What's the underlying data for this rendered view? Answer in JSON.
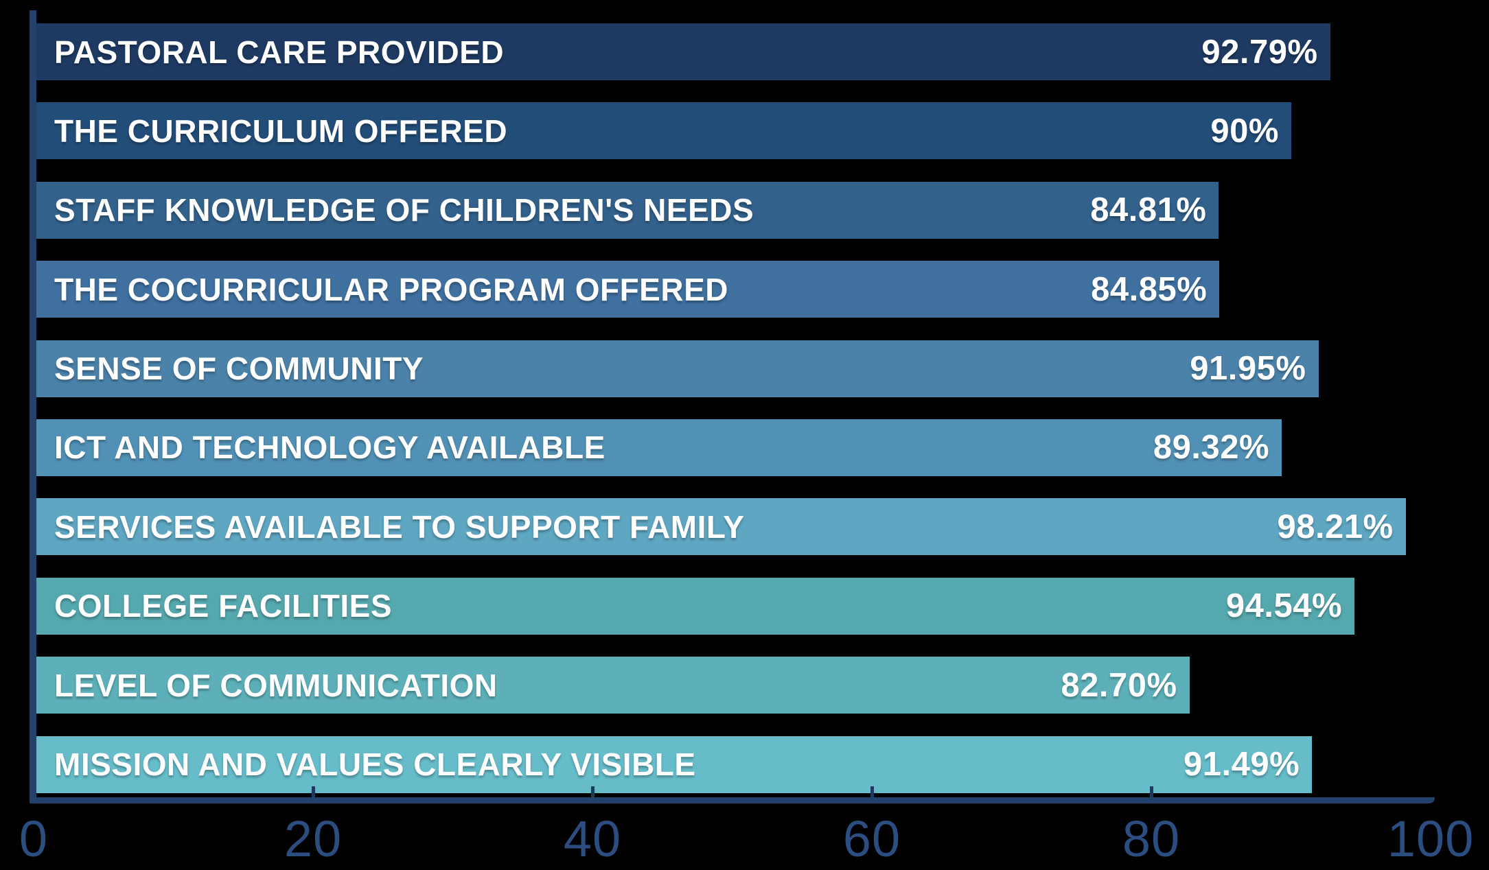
{
  "chart_data": {
    "type": "bar",
    "orientation": "horizontal",
    "title": "",
    "xlabel": "",
    "ylabel": "",
    "grid": false,
    "legend": false,
    "xlim": [
      0,
      100
    ],
    "x_ticks": [
      "0",
      "20",
      "40",
      "60",
      "80",
      "100"
    ],
    "categories": [
      "PASTORAL CARE PROVIDED",
      "THE CURRICULUM OFFERED",
      "STAFF KNOWLEDGE OF CHILDREN'S NEEDS",
      "THE COCURRICULAR PROGRAM OFFERED",
      "SENSE OF COMMUNITY",
      "ICT AND TECHNOLOGY AVAILABLE",
      "SERVICES AVAILABLE TO SUPPORT FAMILY",
      "COLLEGE FACILITIES",
      "LEVEL OF COMMUNICATION",
      "MISSION AND VALUES CLEARLY VISIBLE"
    ],
    "values": [
      92.79,
      90,
      84.81,
      84.85,
      91.95,
      89.32,
      98.21,
      94.54,
      82.7,
      91.49
    ],
    "value_labels": [
      "92.79%",
      "90%",
      "84.81%",
      "84.85%",
      "91.95%",
      "89.32%",
      "98.21%",
      "94.54%",
      "82.70%",
      "91.49%"
    ],
    "bar_colors": [
      "#1e3a63",
      "#224d79",
      "#32618c",
      "#3f70a0",
      "#4a82aa",
      "#5191b5",
      "#5ea6c2",
      "#55a8ae",
      "#5db0b9",
      "#66bcc9"
    ],
    "colors": {
      "background": "#000000",
      "axis_line": "#22416b",
      "tick_mark": "#1e3a5f",
      "tick_label": "#2b4d80",
      "bar_text": "#ffffff"
    }
  }
}
